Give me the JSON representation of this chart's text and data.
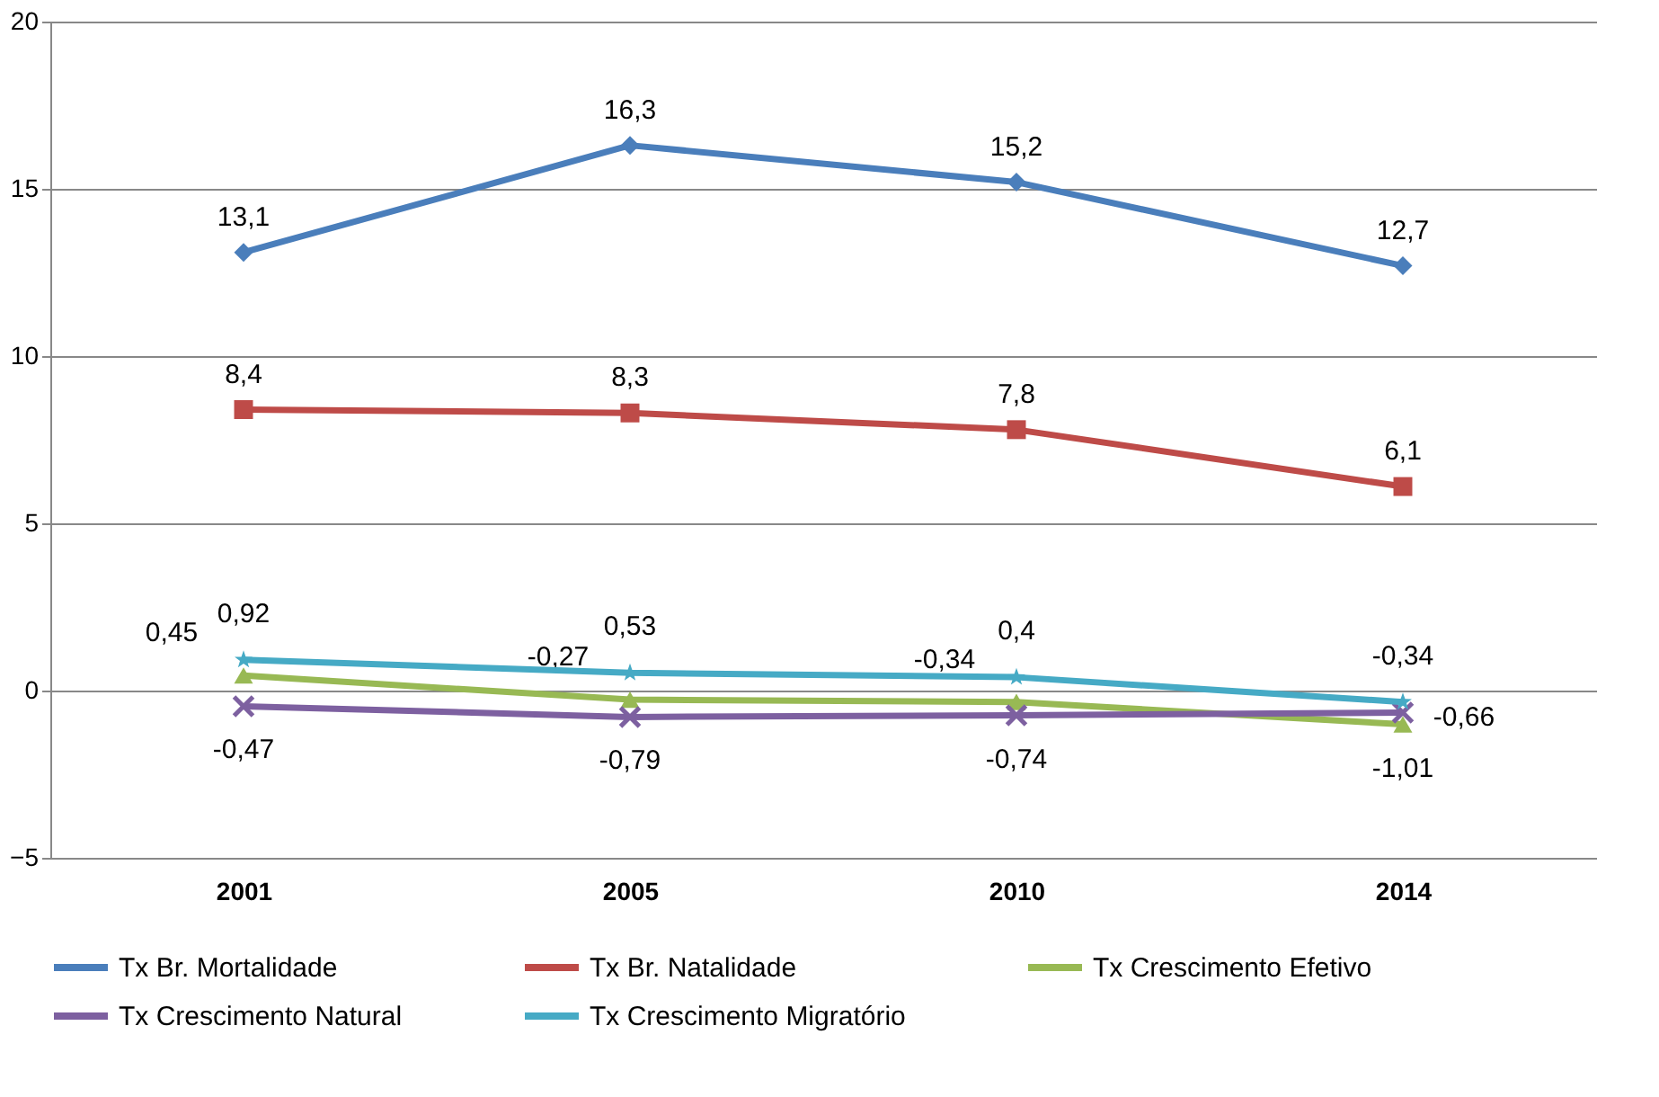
{
  "chart_data": {
    "type": "line",
    "categories": [
      "2001",
      "2005",
      "2010",
      "2014"
    ],
    "ylim": [
      -5,
      20
    ],
    "yticks": [
      -5,
      0,
      5,
      10,
      15,
      20
    ],
    "grid": "y",
    "legend": "bottom",
    "series": [
      {
        "name": "Tx Br. Mortalidade",
        "color": "#4a7ebb",
        "marker": "diamond",
        "values": [
          13.1,
          16.3,
          15.2,
          12.7
        ],
        "value_labels": [
          "13,1",
          "16,3",
          "15,2",
          "12,7"
        ]
      },
      {
        "name": "Tx Br. Natalidade",
        "color": "#be4b48",
        "marker": "square",
        "values": [
          8.4,
          8.3,
          7.8,
          6.1
        ],
        "value_labels": [
          "8,4",
          "8,3",
          "7,8",
          "6,1"
        ]
      },
      {
        "name": "Tx Crescimento Efetivo",
        "color": "#98b954",
        "marker": "triangle",
        "values": [
          0.45,
          -0.27,
          -0.34,
          -1.01
        ],
        "value_labels": [
          "0,45",
          "-0,27",
          "-0,34",
          "-1,01"
        ]
      },
      {
        "name": "Tx Crescimento Natural",
        "color": "#7d60a0",
        "marker": "cross",
        "values": [
          -0.47,
          -0.79,
          -0.74,
          -0.66
        ],
        "value_labels": [
          "-0,47",
          "-0,79",
          "-0,74",
          "-0,66"
        ]
      },
      {
        "name": "Tx Crescimento Migratório",
        "color": "#46aac5",
        "marker": "star",
        "values": [
          0.92,
          0.53,
          0.4,
          -0.34
        ],
        "value_labels": [
          "0,92",
          "0,53",
          "0,4",
          "-0,34"
        ]
      }
    ]
  }
}
